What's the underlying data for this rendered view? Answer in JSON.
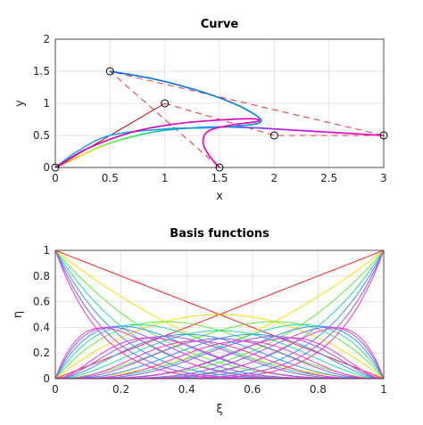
{
  "chart_data": [
    {
      "type": "line",
      "title": "Curve",
      "xlabel": "x",
      "ylabel": "y",
      "xlim": [
        0,
        3
      ],
      "ylim": [
        0,
        2
      ],
      "grid": true,
      "x_ticks": [
        "0",
        "0.5",
        "1",
        "1.5",
        "2",
        "2.5",
        "3"
      ],
      "y_ticks": [
        "0",
        "0.5",
        "1",
        "1.5",
        "2"
      ],
      "control_polygons": [
        {
          "color": "#cc0000",
          "style": "solid",
          "points": [
            [
              0,
              0
            ],
            [
              1,
              1
            ]
          ]
        },
        {
          "color": "#ee3333",
          "style": "dashed",
          "points": [
            [
              1,
              1
            ],
            [
              2,
              0.5
            ],
            [
              3,
              0.5
            ],
            [
              0.5,
              1.5
            ],
            [
              1.5,
              0
            ]
          ]
        }
      ],
      "control_points": [
        [
          0,
          0
        ],
        [
          1,
          1
        ],
        [
          2,
          0.5
        ],
        [
          3,
          0.5
        ],
        [
          0.5,
          1.5
        ],
        [
          1.5,
          0
        ]
      ],
      "series": [
        {
          "color_stops": [
            "#ee0000",
            "#ddee00",
            "#22ee55",
            "#1188ff",
            "#cc00ff",
            "#ff00aa"
          ],
          "points": [
            [
              0,
              0
            ],
            [
              0.1,
              0.08
            ],
            [
              0.25,
              0.2
            ],
            [
              0.45,
              0.35
            ],
            [
              0.7,
              0.48
            ],
            [
              1.0,
              0.58
            ],
            [
              1.4,
              0.63
            ],
            [
              1.8,
              0.62
            ],
            [
              2.2,
              0.58
            ],
            [
              2.6,
              0.54
            ],
            [
              3.0,
              0.5
            ]
          ]
        },
        {
          "color_stops": [
            "#0066ff",
            "#0099cc",
            "#33aaff"
          ],
          "points": [
            [
              0.5,
              1.5
            ],
            [
              0.9,
              1.38
            ],
            [
              1.3,
              1.2
            ],
            [
              1.6,
              1.02
            ],
            [
              1.8,
              0.85
            ],
            [
              1.88,
              0.72
            ],
            [
              1.75,
              0.66
            ],
            [
              1.4,
              0.62
            ],
            [
              1.0,
              0.6
            ],
            [
              0.5,
              0.5
            ],
            [
              0.2,
              0.25
            ],
            [
              0,
              0
            ]
          ]
        },
        {
          "color_stops": [
            "#cc00cc",
            "#ff00bb"
          ],
          "points": [
            [
              0,
              0
            ],
            [
              0.3,
              0.3
            ],
            [
              0.7,
              0.55
            ],
            [
              1.1,
              0.68
            ],
            [
              1.5,
              0.74
            ],
            [
              1.8,
              0.76
            ],
            [
              1.85,
              0.72
            ],
            [
              1.6,
              0.66
            ],
            [
              1.4,
              0.57
            ],
            [
              1.35,
              0.4
            ],
            [
              1.4,
              0.2
            ],
            [
              1.5,
              0
            ]
          ]
        }
      ]
    },
    {
      "type": "line",
      "title": "Basis functions",
      "xlabel": "ξ",
      "ylabel": "η",
      "xlim": [
        0,
        1
      ],
      "ylim": [
        0,
        1
      ],
      "grid": true,
      "x_ticks": [
        "0",
        "0.2",
        "0.4",
        "0.6",
        "0.8",
        "1"
      ],
      "y_ticks": [
        "0",
        "0.2",
        "0.4",
        "0.6",
        "0.8",
        "1"
      ],
      "series": [
        {
          "degree": 1,
          "color": "#ff2222"
        },
        {
          "degree": 2,
          "color": "#ffdd00"
        },
        {
          "degree": 3,
          "color": "#66ee33"
        },
        {
          "degree": 4,
          "color": "#22ddaa"
        },
        {
          "degree": 5,
          "color": "#3399ff"
        },
        {
          "degree": 6,
          "color": "#9955ff"
        },
        {
          "degree": 7,
          "color": "#ff33cc"
        }
      ]
    }
  ]
}
